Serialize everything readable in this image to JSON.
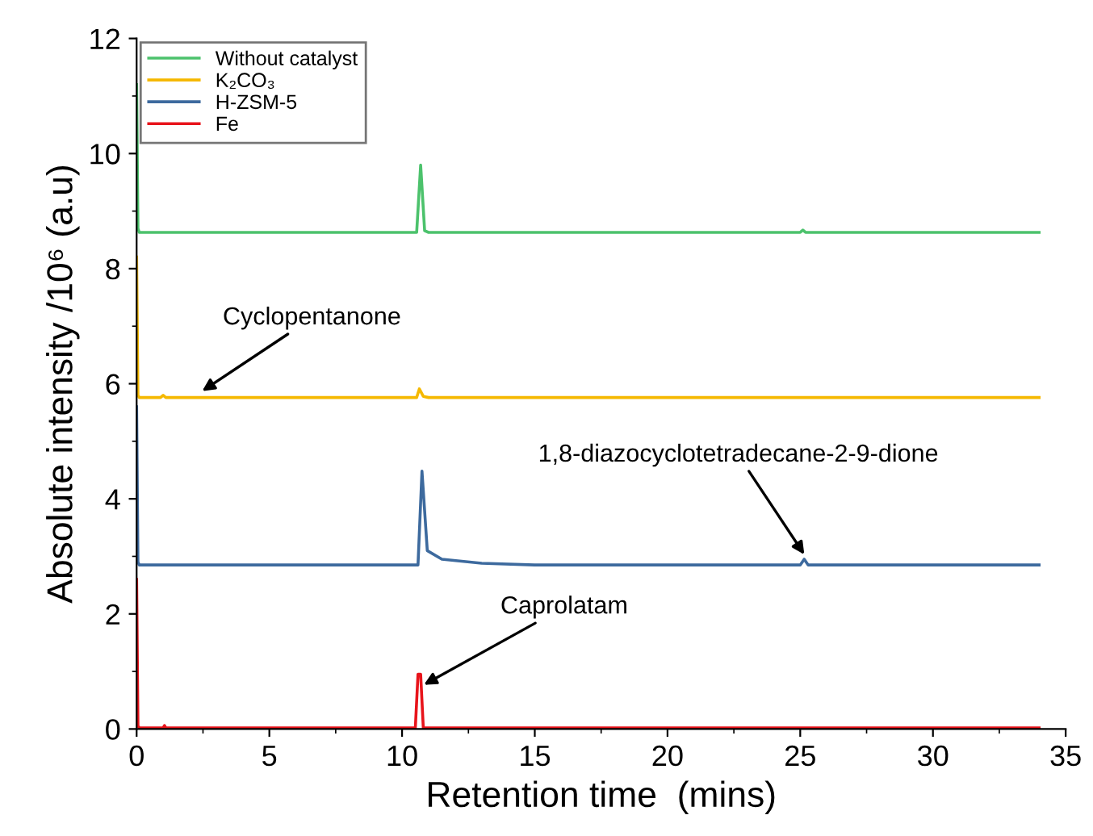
{
  "chart_data": {
    "type": "line",
    "xlabel": "Retention time  (mins)",
    "ylabel": "Absolute intensity /10⁶ (a.u)",
    "xlim": [
      0,
      35
    ],
    "ylim": [
      0,
      12
    ],
    "xticks": [
      0,
      5,
      10,
      15,
      20,
      25,
      30,
      35
    ],
    "yticks": [
      0,
      2,
      4,
      6,
      8,
      10,
      12
    ],
    "grid": false,
    "legend": "top left",
    "marker": "none",
    "line_style": "solid",
    "series": [
      {
        "name": "Without catalyst",
        "color": "#4cc26c",
        "x": [
          0,
          0.05,
          0.1,
          5,
          10.4,
          10.55,
          10.7,
          10.85,
          11,
          25,
          25.1,
          25.2,
          34
        ],
        "values": [
          11.2,
          8.7,
          8.63,
          8.63,
          8.63,
          8.63,
          9.8,
          8.66,
          8.63,
          8.63,
          8.67,
          8.63,
          8.63
        ]
      },
      {
        "name": "K₂CO₃",
        "color": "#f5b800",
        "x": [
          0,
          0.05,
          0.1,
          0.9,
          1,
          1.1,
          10.4,
          10.55,
          10.65,
          10.8,
          11,
          34
        ],
        "values": [
          8.2,
          5.8,
          5.76,
          5.76,
          5.8,
          5.76,
          5.76,
          5.76,
          5.91,
          5.78,
          5.76,
          5.76
        ]
      },
      {
        "name": "H-ZSM-5",
        "color": "#3d6a9e",
        "x": [
          0,
          0.05,
          0.1,
          5,
          10.45,
          10.6,
          10.75,
          10.95,
          11.5,
          13,
          15,
          25,
          25.15,
          25.3,
          34
        ],
        "values": [
          5.6,
          2.9,
          2.85,
          2.85,
          2.85,
          2.85,
          4.48,
          3.1,
          2.95,
          2.88,
          2.85,
          2.85,
          2.95,
          2.85,
          2.85
        ]
      },
      {
        "name": "Fe",
        "color": "#e8141b",
        "x": [
          0,
          0.05,
          0.1,
          1,
          1.05,
          1.1,
          10.4,
          10.5,
          10.6,
          10.7,
          10.8,
          34
        ],
        "values": [
          2.6,
          0.05,
          0.02,
          0.02,
          0.06,
          0.02,
          0.02,
          0.02,
          0.95,
          0.95,
          0.02,
          0.02
        ]
      }
    ],
    "annotations": [
      {
        "text": "Cyclopentanone",
        "x": 2.4,
        "y": 5.85
      },
      {
        "text": "1,8-diazocyclotetradecane-2-9-dione",
        "x": 25.2,
        "y": 3.0
      },
      {
        "text": "Caprolatam",
        "x": 10.75,
        "y": 0.75
      }
    ]
  }
}
